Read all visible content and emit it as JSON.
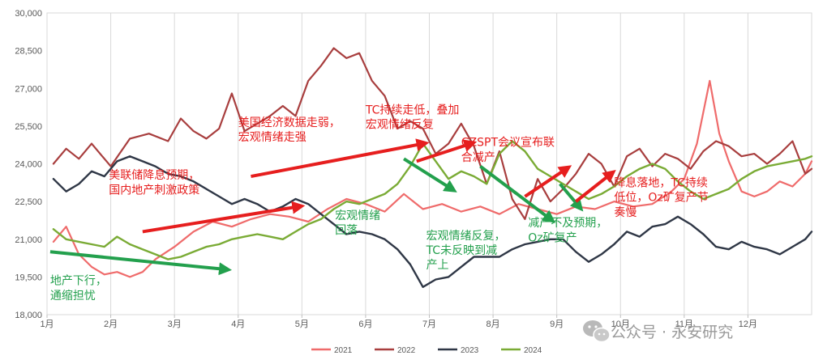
{
  "chart_data": {
    "type": "line",
    "ylim": [
      18000,
      30000
    ],
    "yticks": [
      "18,000",
      "19,500",
      "21,000",
      "22,500",
      "24,000",
      "25,500",
      "27,000",
      "28,500",
      "30,000"
    ],
    "ytick_values": [
      18000,
      19500,
      21000,
      22500,
      24000,
      25500,
      27000,
      28500,
      30000
    ],
    "xticks": [
      "1月",
      "2月",
      "3月",
      "4月",
      "5月",
      "6月",
      "7月",
      "8月",
      "9月",
      "10月",
      "11月",
      "12月"
    ],
    "x_domain": [
      0,
      12
    ],
    "grid": "vertical",
    "legend_position": "bottom",
    "series": [
      {
        "name": "2021",
        "color": "#ef6b6b",
        "width": 2.2,
        "x": [
          0.1,
          0.3,
          0.5,
          0.7,
          0.9,
          1.1,
          1.3,
          1.5,
          1.7,
          2.0,
          2.3,
          2.6,
          2.9,
          3.2,
          3.5,
          3.8,
          4.1,
          4.4,
          4.7,
          5.0,
          5.3,
          5.6,
          5.9,
          6.2,
          6.5,
          6.8,
          7.1,
          7.4,
          7.7,
          8.0,
          8.3,
          8.6,
          8.9,
          9.2,
          9.5,
          9.8,
          10.0,
          10.2,
          10.4,
          10.55,
          10.7,
          10.9,
          11.1,
          11.3,
          11.5,
          11.7,
          11.9,
          12.0
        ],
        "y": [
          20900,
          21500,
          20400,
          19900,
          19600,
          19700,
          19500,
          19700,
          20200,
          20700,
          21300,
          21700,
          21500,
          21800,
          22000,
          21900,
          21700,
          22200,
          22600,
          22400,
          22100,
          22800,
          22200,
          22400,
          22100,
          22300,
          22000,
          22400,
          22200,
          22000,
          22300,
          22200,
          22500,
          22300,
          22400,
          22900,
          23400,
          24800,
          27300,
          25200,
          24100,
          22900,
          22700,
          22900,
          23300,
          23100,
          23600,
          24100
        ]
      },
      {
        "name": "2022",
        "color": "#a83e3e",
        "width": 2.2,
        "x": [
          0.1,
          0.3,
          0.5,
          0.7,
          1.0,
          1.3,
          1.6,
          1.9,
          2.1,
          2.3,
          2.5,
          2.7,
          2.9,
          3.1,
          3.3,
          3.5,
          3.7,
          3.9,
          4.1,
          4.3,
          4.5,
          4.7,
          4.9,
          5.1,
          5.3,
          5.5,
          5.7,
          5.9,
          6.1,
          6.3,
          6.5,
          6.7,
          6.9,
          7.1,
          7.3,
          7.5,
          7.7,
          7.9,
          8.1,
          8.3,
          8.5,
          8.7,
          8.9,
          9.1,
          9.3,
          9.5,
          9.7,
          9.9,
          10.1,
          10.3,
          10.5,
          10.7,
          10.9,
          11.1,
          11.3,
          11.5,
          11.7,
          11.9,
          12.0
        ],
        "y": [
          24000,
          24600,
          24200,
          24800,
          23900,
          25000,
          25200,
          24900,
          25800,
          25300,
          25000,
          25400,
          26800,
          25300,
          25600,
          25900,
          26300,
          25900,
          27300,
          27900,
          28600,
          28200,
          28400,
          27300,
          26700,
          25400,
          25700,
          25400,
          24400,
          24800,
          25600,
          24700,
          23200,
          24500,
          22600,
          21800,
          23400,
          22500,
          23000,
          23600,
          24400,
          24000,
          23100,
          24300,
          24600,
          23900,
          24400,
          24200,
          23800,
          24500,
          24900,
          24700,
          24300,
          24400,
          24000,
          24400,
          24900,
          23600,
          23800
        ]
      },
      {
        "name": "2023",
        "color": "#2f3746",
        "width": 2.4,
        "x": [
          0.1,
          0.3,
          0.5,
          0.7,
          0.9,
          1.1,
          1.3,
          1.5,
          1.7,
          1.9,
          2.1,
          2.3,
          2.5,
          2.7,
          2.9,
          3.1,
          3.3,
          3.5,
          3.7,
          3.9,
          4.1,
          4.3,
          4.5,
          4.7,
          4.9,
          5.1,
          5.3,
          5.5,
          5.7,
          5.9,
          6.1,
          6.3,
          6.5,
          6.7,
          6.9,
          7.1,
          7.3,
          7.5,
          7.7,
          7.9,
          8.1,
          8.3,
          8.5,
          8.7,
          8.9,
          9.1,
          9.3,
          9.5,
          9.7,
          9.9,
          10.1,
          10.3,
          10.5,
          10.7,
          10.9,
          11.1,
          11.3,
          11.5,
          11.7,
          11.9,
          12.0
        ],
        "y": [
          23400,
          22900,
          23200,
          23700,
          23500,
          24100,
          24300,
          24100,
          23900,
          23600,
          23500,
          23300,
          23000,
          22700,
          22400,
          22600,
          22400,
          22100,
          22300,
          22600,
          22400,
          22000,
          21600,
          21200,
          21300,
          21200,
          21000,
          20600,
          20000,
          19100,
          19400,
          19500,
          19900,
          20300,
          20300,
          20300,
          20600,
          20800,
          20900,
          21000,
          21000,
          20500,
          20100,
          20400,
          20800,
          21300,
          21100,
          21500,
          21600,
          21900,
          21600,
          21200,
          20700,
          20600,
          20900,
          20700,
          20600,
          20400,
          20700,
          21000,
          21300
        ]
      },
      {
        "name": "2024",
        "color": "#7aab35",
        "width": 2.4,
        "x": [
          0.1,
          0.3,
          0.5,
          0.7,
          0.9,
          1.1,
          1.3,
          1.5,
          1.7,
          1.9,
          2.1,
          2.3,
          2.5,
          2.7,
          2.9,
          3.1,
          3.3,
          3.5,
          3.7,
          3.9,
          4.1,
          4.3,
          4.5,
          4.7,
          4.9,
          5.1,
          5.3,
          5.5,
          5.7,
          5.9,
          6.1,
          6.3,
          6.5,
          6.7,
          6.9,
          7.1,
          7.3,
          7.5,
          7.7,
          7.9,
          8.1,
          8.3,
          8.5,
          8.7,
          8.9,
          9.1,
          9.3,
          9.5,
          9.7,
          9.9,
          10.1,
          10.3,
          10.5,
          10.7,
          10.9,
          11.1,
          11.3,
          11.5,
          11.7,
          11.9,
          12.0
        ],
        "y": [
          21400,
          21000,
          20900,
          20800,
          20700,
          21100,
          20800,
          20600,
          20400,
          20200,
          20300,
          20500,
          20700,
          20800,
          21000,
          21100,
          21200,
          21100,
          21000,
          21300,
          21600,
          21800,
          22200,
          22500,
          22400,
          22600,
          22800,
          23200,
          23900,
          24800,
          24100,
          23400,
          23700,
          23500,
          23200,
          24400,
          24900,
          24500,
          23800,
          23500,
          23200,
          22900,
          22600,
          22800,
          23100,
          23500,
          23800,
          24000,
          23800,
          23300,
          22900,
          22600,
          22800,
          23000,
          23400,
          23700,
          23900,
          24000,
          24100,
          24200,
          24300
        ]
      }
    ],
    "annotations": [
      {
        "lines": [
          "地产下行，",
          "通缩担忧"
        ],
        "color": "#23a04d",
        "x": 0.05,
        "y": 19200
      },
      {
        "lines": [
          "美联储降息预期，",
          "国内地产刺激政策"
        ],
        "color": "#e61e1e",
        "x": 0.97,
        "y": 23400
      },
      {
        "lines": [
          "美国经济数据走弱，",
          "宏观情绪走强"
        ],
        "color": "#e61e1e",
        "x": 3.0,
        "y": 25500
      },
      {
        "lines": [
          "宏观情绪",
          "回落"
        ],
        "color": "#23a04d",
        "x": 4.52,
        "y": 21800
      },
      {
        "lines": [
          "TC持续走低，叠加",
          "宏观情绪反复"
        ],
        "color": "#e61e1e",
        "x": 5.0,
        "y": 26000
      },
      {
        "lines": [
          "CZSPT会议宣布联",
          "合减产"
        ],
        "color": "#e61e1e",
        "x": 6.5,
        "y": 24700
      },
      {
        "lines": [
          "宏观情绪反复，",
          "TC未反映到减",
          "产上"
        ],
        "color": "#23a04d",
        "x": 5.95,
        "y": 21000
      },
      {
        "lines": [
          "减产不及预期，",
          "Oz矿复产"
        ],
        "color": "#23a04d",
        "x": 7.55,
        "y": 21500
      },
      {
        "lines": [
          "降息落地，TC持续",
          "低位，Oz矿复产节",
          "奏慢"
        ],
        "color": "#e61e1e",
        "x": 8.9,
        "y": 23100
      }
    ],
    "arrows": [
      {
        "color": "#23a04d",
        "from": [
          0.05,
          20500
        ],
        "to": [
          2.8,
          19800
        ]
      },
      {
        "color": "#e61e1e",
        "from": [
          1.5,
          21300
        ],
        "to": [
          3.95,
          22300
        ]
      },
      {
        "color": "#e61e1e",
        "from": [
          3.2,
          23500
        ],
        "to": [
          5.9,
          24800
        ]
      },
      {
        "color": "#23a04d",
        "from": [
          5.6,
          24200
        ],
        "to": [
          6.35,
          23000
        ]
      },
      {
        "color": "#e61e1e",
        "from": [
          5.8,
          24100
        ],
        "to": [
          6.65,
          24800
        ]
      },
      {
        "color": "#23a04d",
        "from": [
          6.8,
          23900
        ],
        "to": [
          7.9,
          21800
        ]
      },
      {
        "color": "#e61e1e",
        "from": [
          7.5,
          22700
        ],
        "to": [
          8.15,
          23800
        ]
      },
      {
        "color": "#23a04d",
        "from": [
          8.05,
          23200
        ],
        "to": [
          8.35,
          22300
        ]
      },
      {
        "color": "#e61e1e",
        "from": [
          8.3,
          22500
        ],
        "to": [
          8.85,
          23600
        ]
      }
    ]
  },
  "watermark": {
    "text": "公众号 · 永安研究",
    "icon": "wechat-icon"
  }
}
